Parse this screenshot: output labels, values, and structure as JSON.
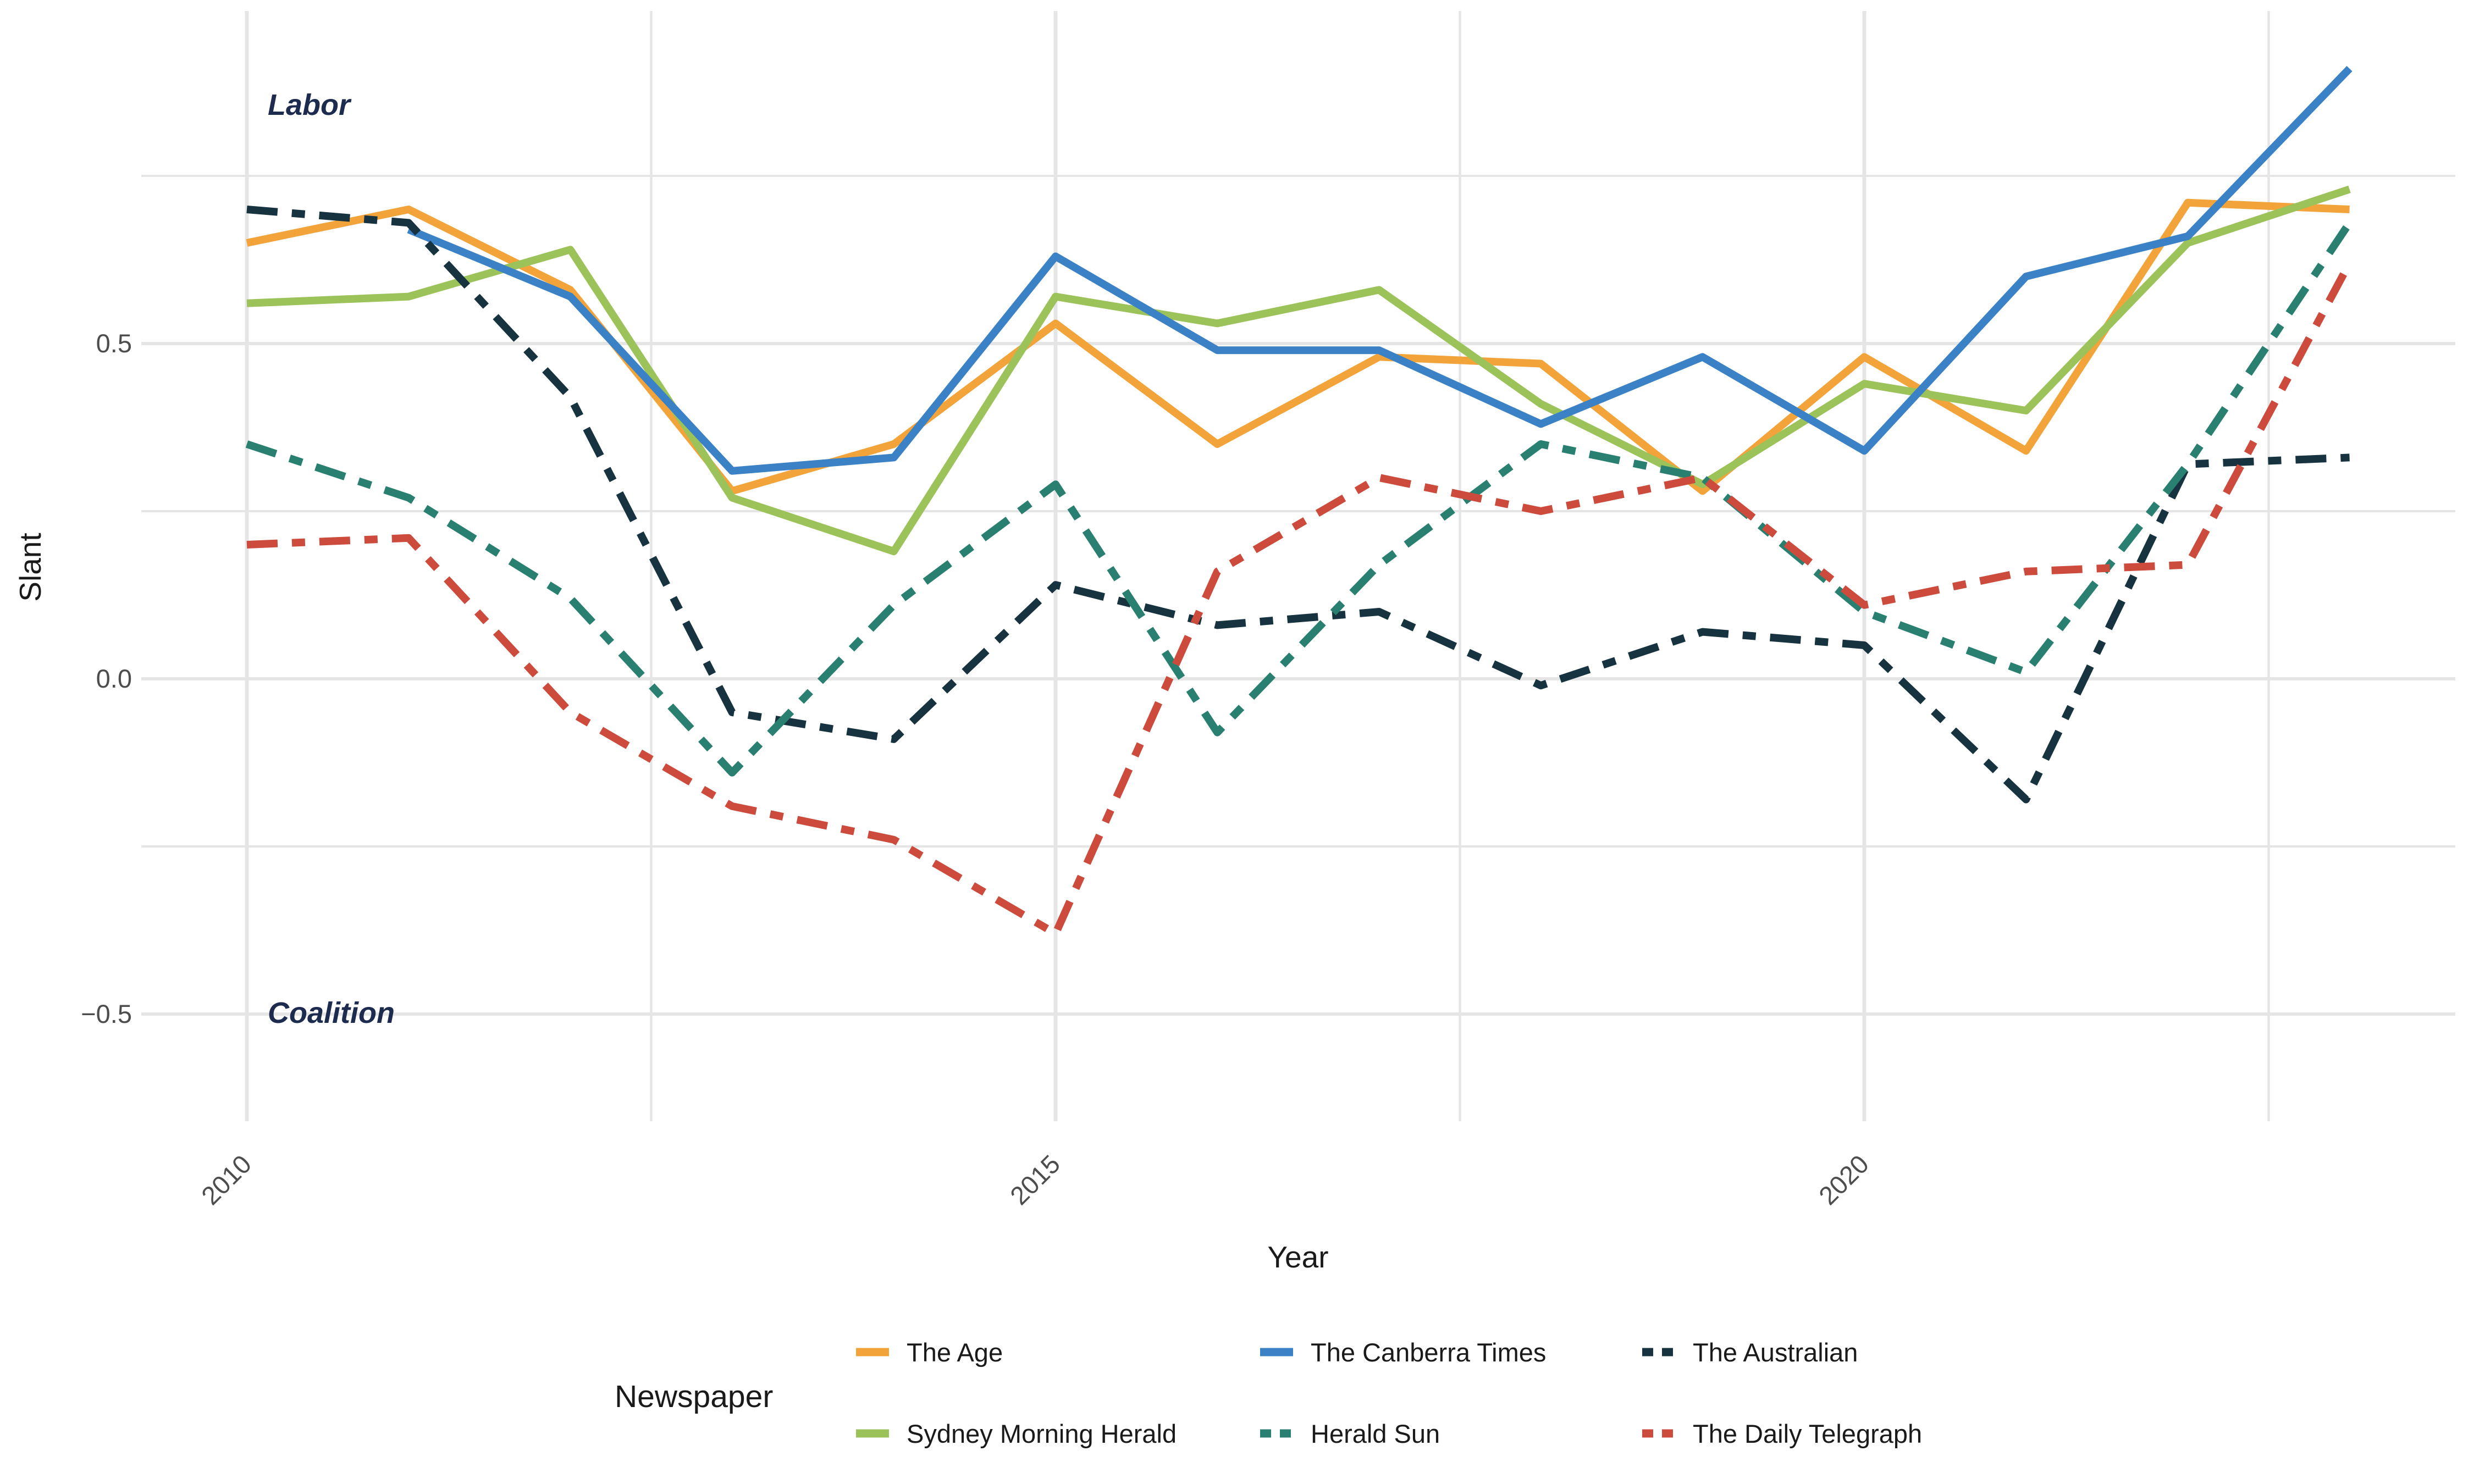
{
  "colors": {
    "orange": "#F2A43B",
    "green": "#9CC25A",
    "blue": "#3A81C6",
    "teal": "#2A8070",
    "navy": "#17333F",
    "red": "#CC4B3C",
    "grid": "#E5E5E5",
    "tick_text": "#4D4D4D",
    "axis_title_text": "#1A1A1A",
    "annotation_text": "#1C2B4E"
  },
  "axes": {
    "y_title": "Slant",
    "x_title": "Year",
    "y_ticks": [
      {
        "label": "0.5",
        "value": 0.5
      },
      {
        "label": "0.0",
        "value": 0.0
      },
      {
        "label": "−0.5",
        "value": -0.5
      }
    ],
    "x_ticks": [
      {
        "label": "2010",
        "value": 2010
      },
      {
        "label": "2015",
        "value": 2015
      },
      {
        "label": "2020",
        "value": 2020
      }
    ]
  },
  "annotations": [
    {
      "text": "Labor"
    },
    {
      "text": "Coalition"
    }
  ],
  "legend": {
    "title": "Newspaper"
  },
  "chart_data": {
    "type": "line",
    "title": "",
    "xlabel": "Year",
    "ylabel": "Slant",
    "x": [
      2010,
      2011,
      2012,
      2013,
      2014,
      2015,
      2016,
      2017,
      2018,
      2019,
      2020,
      2021,
      2022,
      2023
    ],
    "xlim": [
      2009.35,
      2023.65
    ],
    "ylim": [
      -0.67,
      1.0
    ],
    "grid": "on",
    "legend_position": "bottom",
    "major_x_gridlines": [
      2010,
      2015,
      2020
    ],
    "minor_x_gridlines": [
      2012.5,
      2017.5,
      2022.5
    ],
    "major_y_gridlines": [
      0.5,
      0.0,
      -0.5
    ],
    "minor_y_gridlines": [
      0.75,
      0.25,
      -0.25
    ],
    "series": [
      {
        "name": "The Age",
        "color_key": "orange",
        "dashed": false,
        "values": [
          0.65,
          0.7,
          0.58,
          0.28,
          0.35,
          0.53,
          0.35,
          0.48,
          0.47,
          0.28,
          0.48,
          0.34,
          0.71,
          0.7
        ]
      },
      {
        "name": "Sydney Morning Herald",
        "color_key": "green",
        "dashed": false,
        "values": [
          0.56,
          0.57,
          0.64,
          0.27,
          0.19,
          0.57,
          0.53,
          0.58,
          0.41,
          0.29,
          0.44,
          0.4,
          0.65,
          0.73
        ]
      },
      {
        "name": "The Canberra Times",
        "color_key": "blue",
        "dashed": false,
        "values": [
          null,
          0.67,
          0.57,
          0.31,
          0.33,
          0.63,
          0.49,
          0.49,
          0.38,
          0.48,
          0.34,
          0.6,
          0.66,
          0.91
        ]
      },
      {
        "name": "Herald Sun",
        "color_key": "teal",
        "dashed": true,
        "values": [
          0.35,
          0.27,
          0.12,
          -0.14,
          0.11,
          0.29,
          -0.08,
          0.17,
          0.35,
          0.3,
          0.1,
          0.01,
          0.32,
          0.68
        ]
      },
      {
        "name": "The Australian",
        "color_key": "navy",
        "dashed": true,
        "values": [
          0.7,
          0.68,
          0.42,
          -0.05,
          -0.09,
          0.14,
          0.08,
          0.1,
          -0.01,
          0.07,
          0.05,
          -0.18,
          0.32,
          0.33
        ]
      },
      {
        "name": "The Daily Telegraph",
        "color_key": "red",
        "dashed": true,
        "values": [
          0.2,
          0.21,
          -0.05,
          -0.19,
          -0.24,
          -0.38,
          0.16,
          0.3,
          0.25,
          0.3,
          0.11,
          0.16,
          0.17,
          0.62
        ]
      }
    ]
  }
}
